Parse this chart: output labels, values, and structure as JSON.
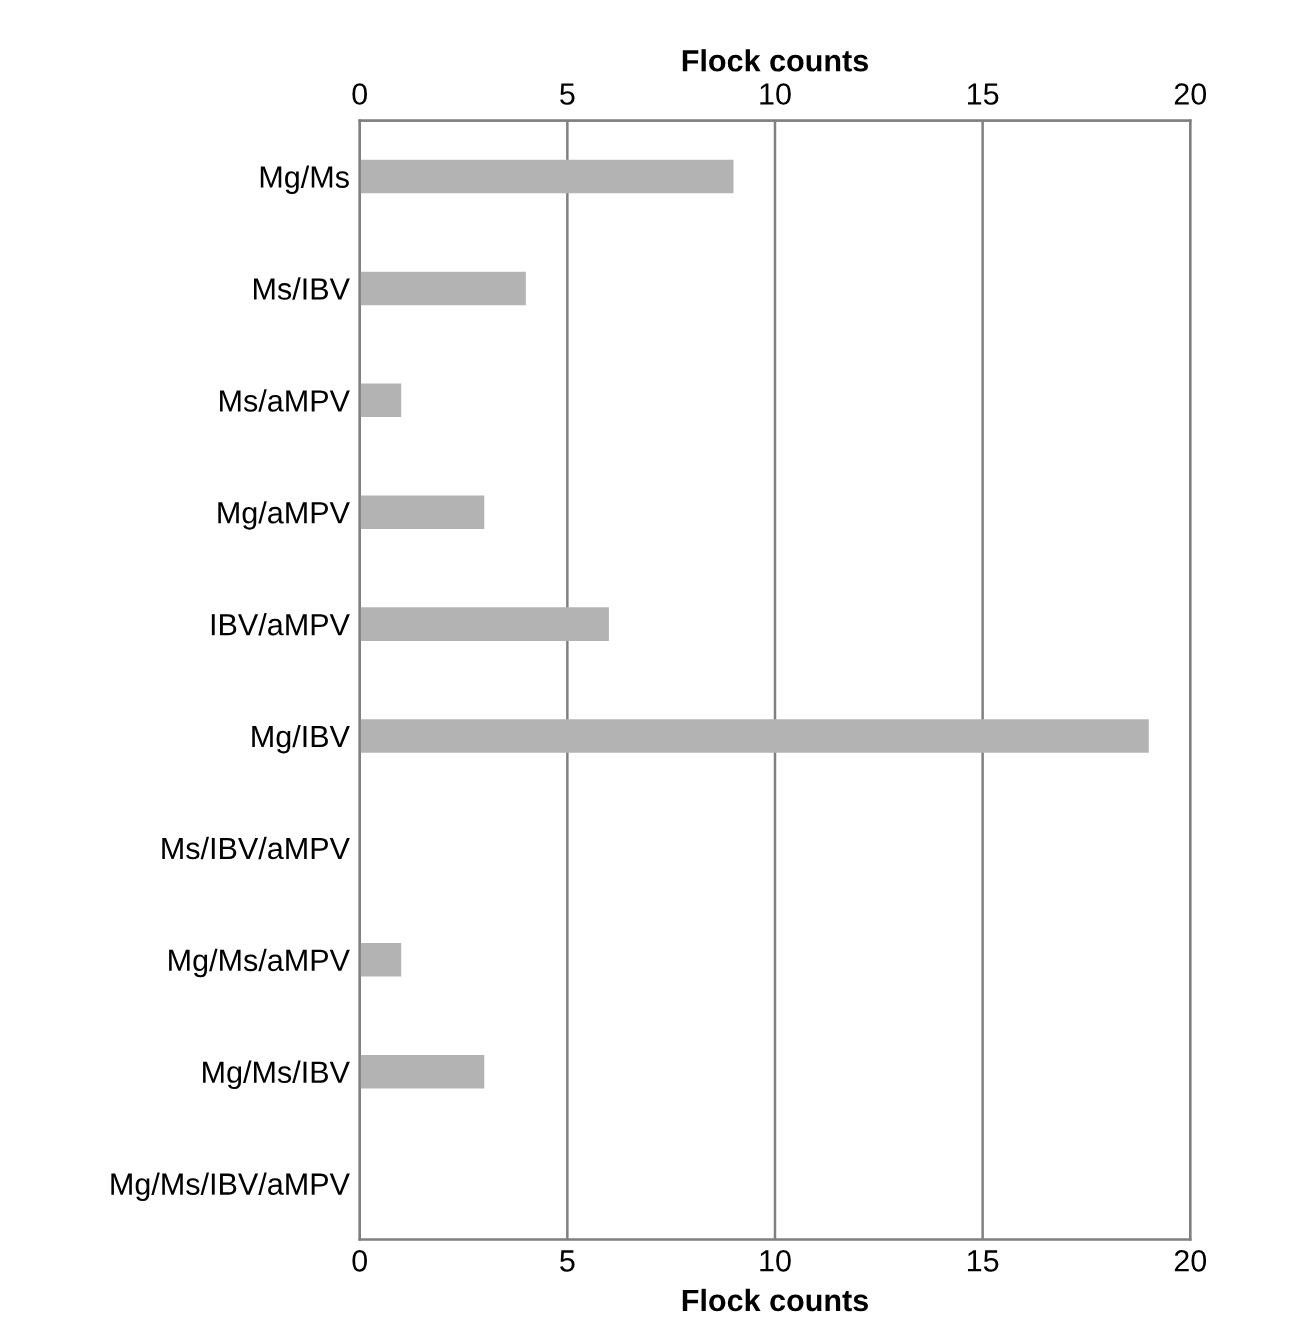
{
  "chart_data": {
    "type": "bar",
    "orientation": "horizontal",
    "xlabel": "Flock counts",
    "x2label": "Flock counts",
    "categories": [
      "Mg/Ms",
      "Ms/IBV",
      "Ms/aMPV",
      "Mg/aMPV",
      "IBV/aMPV",
      "Mg/IBV",
      "Ms/IBV/aMPV",
      "Mg/Ms/aMPV",
      "Mg/Ms/IBV",
      "Mg/Ms/IBV/aMPV"
    ],
    "values": [
      9,
      4,
      1,
      3,
      6,
      19,
      0,
      1,
      3,
      0
    ],
    "color": "#b3b3b3",
    "xlim": [
      0,
      20
    ],
    "xticks": [
      0,
      5,
      10,
      15,
      20
    ],
    "x2lim": [
      0,
      20
    ],
    "x2ticks": [
      0,
      5,
      10,
      15,
      20
    ],
    "grid": "x"
  }
}
